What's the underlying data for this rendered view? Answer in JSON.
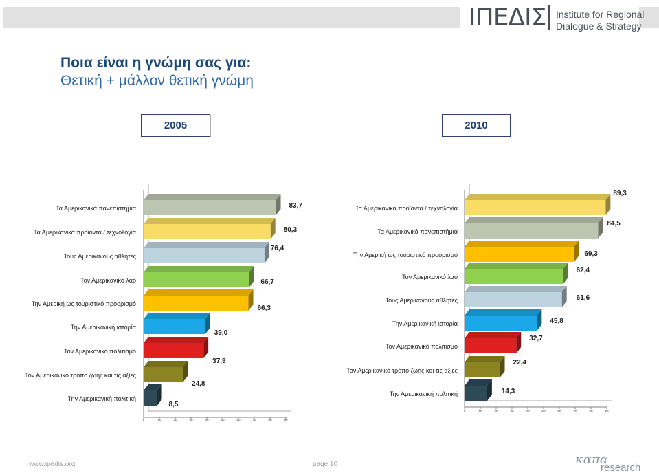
{
  "header": {
    "logo_mark": "ΙΠΕΔΙΣ",
    "logo_line1": "Institute for Regional",
    "logo_line2": "Dialogue & Strategy"
  },
  "title": {
    "line1": "Ποια είναι η γνώμη σας για:",
    "line2": "Θετική + μάλλον θετική γνώμη"
  },
  "years": {
    "left": "2005",
    "right": "2010"
  },
  "chart_data": [
    {
      "type": "bar",
      "orientation": "horizontal",
      "title": "2005",
      "categories": [
        "Τα Αμερικανικά πανεπιστήμια",
        "Τα Αμερικανικά προϊόντα / τεχνολογία",
        "Τους Αμερικανούς αθλητές",
        "Τον Αμερικανικό λαό",
        "Την Αμερική ως τουριστικό προορισμό",
        "Την Αμερικανική ιστορία",
        "Τον Αμερικανικό πολιτισμό",
        "Τον Αμερικανικό τρόπο ζωής και τις αξίες",
        "Την Αμερικανική πολιτική"
      ],
      "values": [
        83.7,
        80.3,
        76.4,
        66.7,
        66.3,
        39.0,
        37.9,
        24.8,
        8.5
      ],
      "value_labels": [
        "83,7",
        "80,3",
        "76,4",
        "66,7",
        "66,3",
        "39,0",
        "37,9",
        "24,8",
        "8,5"
      ],
      "colors": [
        "#bcc5af",
        "#f8dc63",
        "#bdd3de",
        "#8fd14f",
        "#ffc000",
        "#1aa8e8",
        "#e02020",
        "#8b8420",
        "#2e4a57"
      ],
      "xlim": [
        0,
        90
      ],
      "ticks": [
        "0",
        "10",
        "20",
        "30",
        "40",
        "50",
        "60",
        "70",
        "80",
        "90"
      ]
    },
    {
      "type": "bar",
      "orientation": "horizontal",
      "title": "2010",
      "categories": [
        "Τα Αμερικανικά προϊόντα / τεχνολογία",
        "Τα Αμερικανικά πανεπιστήμια",
        "Την Αμερική ως τουριστικό προορισμό",
        "Τον Αμερικανικό λαό",
        "Τους Αμερικανούς αθλητές",
        "Την Αμερικανική ιστορία",
        "Τον Αμερικανικό πολιτισμό",
        "Τον Αμερικανικό τρόπο ζωής και τις αξίες",
        "Την Αμερικανική πολιτική"
      ],
      "values": [
        89.3,
        84.5,
        69.3,
        62.4,
        61.6,
        45.8,
        32.7,
        22.4,
        14.3
      ],
      "value_labels": [
        "89,3",
        "84,5",
        "69,3",
        "62,4",
        "61,6",
        "45,8",
        "32,7",
        "22,4",
        "14,3"
      ],
      "colors": [
        "#f8dc63",
        "#bcc5af",
        "#ffc000",
        "#8fd14f",
        "#bdd3de",
        "#1aa8e8",
        "#e02020",
        "#8b8420",
        "#2e4a57"
      ],
      "xlim": [
        0,
        90
      ],
      "ticks": [
        "0",
        "10",
        "20",
        "30",
        "40",
        "50",
        "60",
        "70",
        "80",
        "90"
      ]
    }
  ],
  "footer": {
    "url": "www.ipedis.org",
    "page": "page 10",
    "brand_part1": "καπα",
    "brand_part2": "research"
  }
}
